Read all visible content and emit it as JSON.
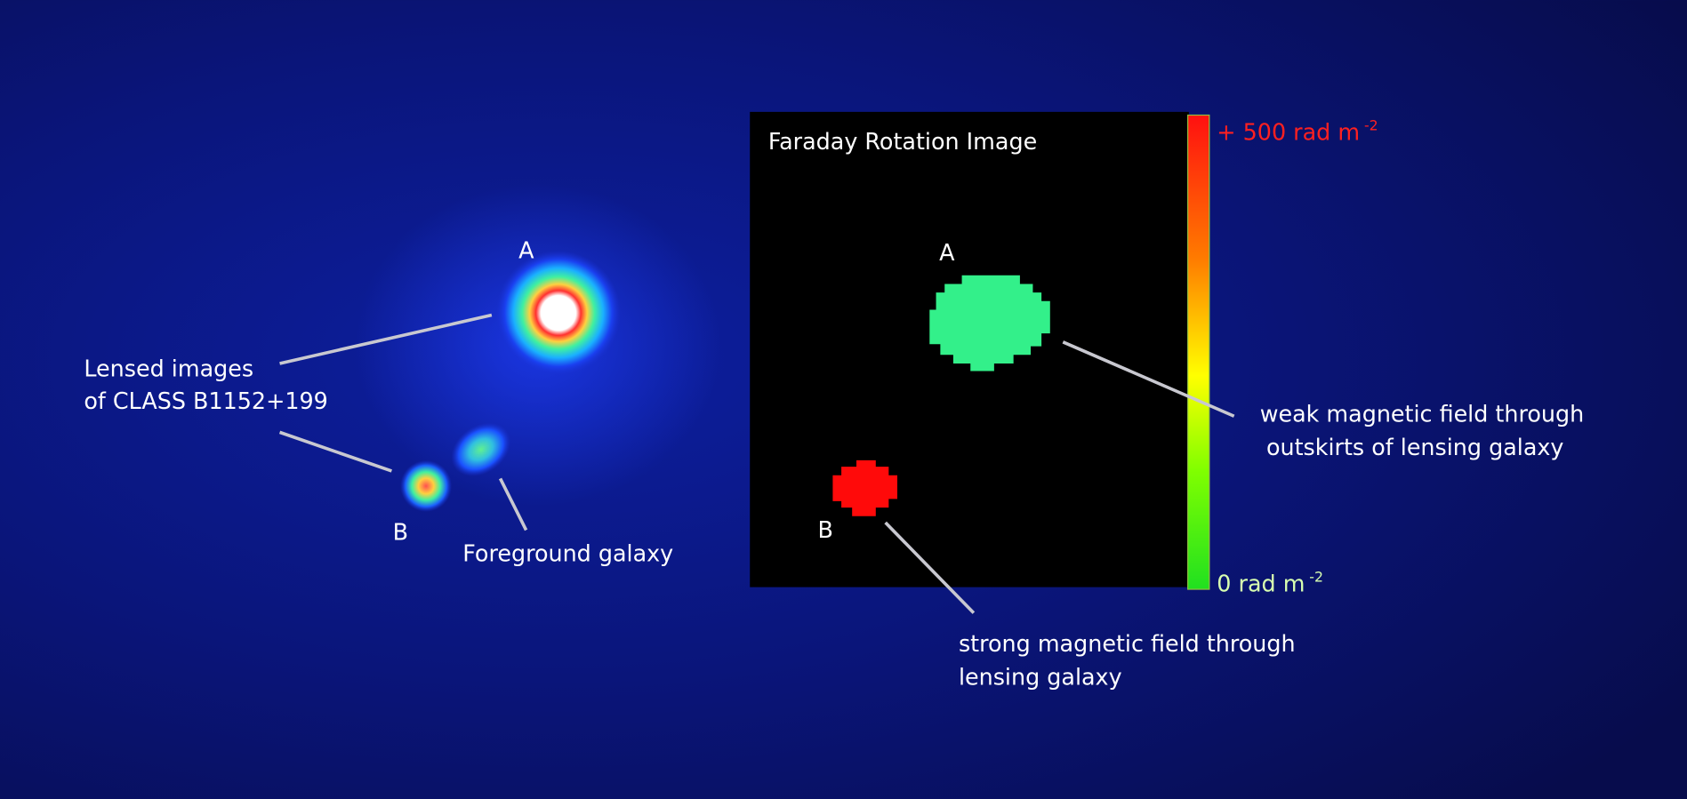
{
  "left_panel": {
    "label_a": "A",
    "label_b": "B",
    "lensed_label": [
      "Lensed images",
      "of CLASS B1152+199"
    ],
    "foreground_label": "Foreground  galaxy"
  },
  "rotation_panel": {
    "title": "Faraday Rotation Image",
    "label_a": "A",
    "label_b": "B",
    "colorbar_top": {
      "text": "+ 500 rad m",
      "superscript": "-2"
    },
    "colorbar_bottom": {
      "text": "0 rad m",
      "superscript": "-2"
    },
    "weak_label": [
      "weak magnetic field through",
      "outskirts of lensing galaxy"
    ],
    "strong_label": [
      "strong magnetic field through",
      "lensing galaxy"
    ]
  }
}
